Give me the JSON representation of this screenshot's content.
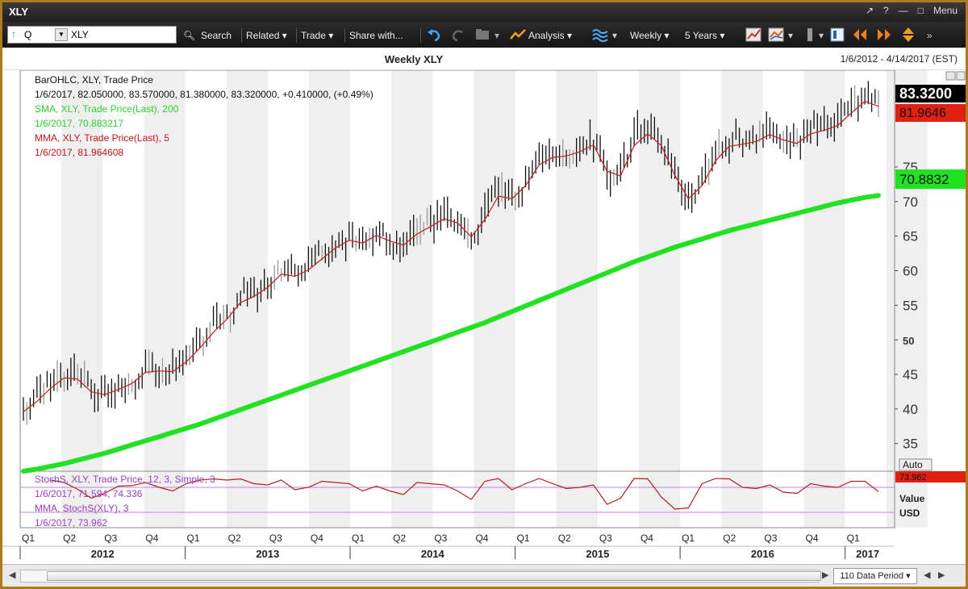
{
  "window": {
    "title": "XLY",
    "controls": [
      "↗",
      "?",
      "—",
      "□",
      "Menu"
    ]
  },
  "toolbar": {
    "symbol_prefix": "Q",
    "symbol_value": "XLY",
    "search": "Search",
    "related": "Related ▾",
    "trade": "Trade ▾",
    "share": "Share with...",
    "analysis": "Analysis ▾",
    "interval": "Weekly ▾",
    "range": "5 Years ▾"
  },
  "chart": {
    "title": "Weekly XLY",
    "date_range": "1/6/2012 - 4/14/2017 (EST)",
    "legend": [
      {
        "text": "BarOHLC, XLY, Trade Price",
        "color": "#111111"
      },
      {
        "text": "1/6/2017, 82.050000, 83.570000, 81.380000, 83.320000, +0.410000, (+0.49%)",
        "color": "#111111"
      },
      {
        "text": "SMA, XLY, Trade Price(Last),  200",
        "color": "#2fd02f"
      },
      {
        "text": "1/6/2017, 70.883217",
        "color": "#2fd02f"
      },
      {
        "text": "MMA, XLY, Trade Price(Last),  5",
        "color": "#c01818"
      },
      {
        "text": "1/6/2017, 81.964608",
        "color": "#c01818"
      }
    ],
    "price_tags": {
      "last": "83.3200",
      "mma": "81.9646",
      "sma": "70.8832"
    },
    "auto_label": "Auto",
    "stoch_legend": [
      {
        "text": "StochS, XLY, Trade Price,  12, 3, Simple, 3",
        "color": "#a040c0"
      },
      {
        "text": "1/6/2017, 71.594, 74.336",
        "color": "#a040c0"
      },
      {
        "text": "MMA, StochS(XLY), 3",
        "color": "#a040c0"
      },
      {
        "text": "1/6/2017, 73.962",
        "color": "#a040c0"
      }
    ],
    "stoch_tag": "73.962",
    "stoch_axis": [
      "Value",
      "USD"
    ],
    "quarters": [
      "Q1",
      "Q2",
      "Q3",
      "Q4",
      "Q1",
      "Q2",
      "Q3",
      "Q4",
      "Q1",
      "Q2",
      "Q3",
      "Q4",
      "Q1",
      "Q2",
      "Q3",
      "Q4",
      "Q1",
      "Q2",
      "Q3",
      "Q4",
      "Q1",
      "Q2"
    ],
    "years": [
      "2012",
      "2013",
      "2014",
      "2015",
      "2016",
      "2017"
    ],
    "y_ticks": [
      {
        "label": "35",
        "bold": false
      },
      {
        "label": "40",
        "bold": false
      },
      {
        "label": "45",
        "bold": false
      },
      {
        "label": "50",
        "bold": true
      },
      {
        "label": "55",
        "bold": false
      },
      {
        "label": "60",
        "bold": false
      },
      {
        "label": "65",
        "bold": false
      },
      {
        "label": "70",
        "bold": false
      },
      {
        "label": "75",
        "bold": false
      }
    ]
  },
  "chart_data": {
    "type": "line",
    "xlabel": "",
    "ylabel": "",
    "ylim": [
      31,
      89
    ],
    "x": [
      "2012-01",
      "2012-02",
      "2012-03",
      "2012-04",
      "2012-05",
      "2012-06",
      "2012-07",
      "2012-08",
      "2012-09",
      "2012-10",
      "2012-11",
      "2012-12",
      "2013-01",
      "2013-02",
      "2013-03",
      "2013-04",
      "2013-05",
      "2013-06",
      "2013-07",
      "2013-08",
      "2013-09",
      "2013-10",
      "2013-11",
      "2013-12",
      "2014-01",
      "2014-02",
      "2014-03",
      "2014-04",
      "2014-05",
      "2014-06",
      "2014-07",
      "2014-08",
      "2014-09",
      "2014-10",
      "2014-11",
      "2014-12",
      "2015-01",
      "2015-02",
      "2015-03",
      "2015-04",
      "2015-05",
      "2015-06",
      "2015-07",
      "2015-08",
      "2015-09",
      "2015-10",
      "2015-11",
      "2015-12",
      "2016-01",
      "2016-02",
      "2016-03",
      "2016-04",
      "2016-05",
      "2016-06",
      "2016-07",
      "2016-08",
      "2016-09",
      "2016-10",
      "2016-11",
      "2016-12",
      "2017-01",
      "2017-02",
      "2017-03",
      "2017-04"
    ],
    "series": [
      {
        "name": "BarOHLC, XLY, Trade Price",
        "values": [
          40.0,
          42.5,
          44.0,
          45.5,
          44.2,
          42.0,
          42.8,
          43.5,
          44.5,
          46.5,
          45.5,
          46.0,
          48.0,
          50.0,
          52.5,
          54.0,
          57.0,
          56.5,
          59.0,
          60.5,
          59.0,
          61.5,
          62.5,
          64.5,
          65.0,
          64.0,
          66.5,
          63.5,
          64.5,
          66.5,
          67.0,
          68.5,
          66.5,
          64.5,
          70.0,
          72.0,
          70.0,
          74.5,
          76.5,
          77.0,
          77.0,
          78.0,
          79.0,
          72.0,
          75.5,
          80.5,
          80.0,
          77.5,
          72.0,
          70.0,
          74.5,
          77.5,
          79.0,
          78.5,
          79.5,
          80.5,
          78.5,
          79.0,
          81.0,
          80.5,
          82.0,
          84.0,
          85.5,
          83.3
        ]
      },
      {
        "name": "SMA, XLY, Trade Price(Last), 200",
        "values": [
          31.0,
          31.3,
          31.7,
          32.1,
          32.6,
          33.1,
          33.6,
          34.2,
          34.8,
          35.4,
          36.0,
          36.6,
          37.2,
          37.8,
          38.5,
          39.2,
          39.9,
          40.6,
          41.3,
          42.0,
          42.7,
          43.4,
          44.1,
          44.8,
          45.5,
          46.2,
          46.9,
          47.6,
          48.3,
          49.0,
          49.7,
          50.4,
          51.1,
          51.8,
          52.5,
          53.3,
          54.1,
          54.9,
          55.7,
          56.5,
          57.3,
          58.1,
          58.9,
          59.7,
          60.5,
          61.3,
          62.0,
          62.7,
          63.4,
          64.0,
          64.6,
          65.2,
          65.8,
          66.3,
          66.8,
          67.3,
          67.8,
          68.3,
          68.8,
          69.3,
          69.8,
          70.2,
          70.6,
          70.88
        ]
      }
    ]
  }
}
